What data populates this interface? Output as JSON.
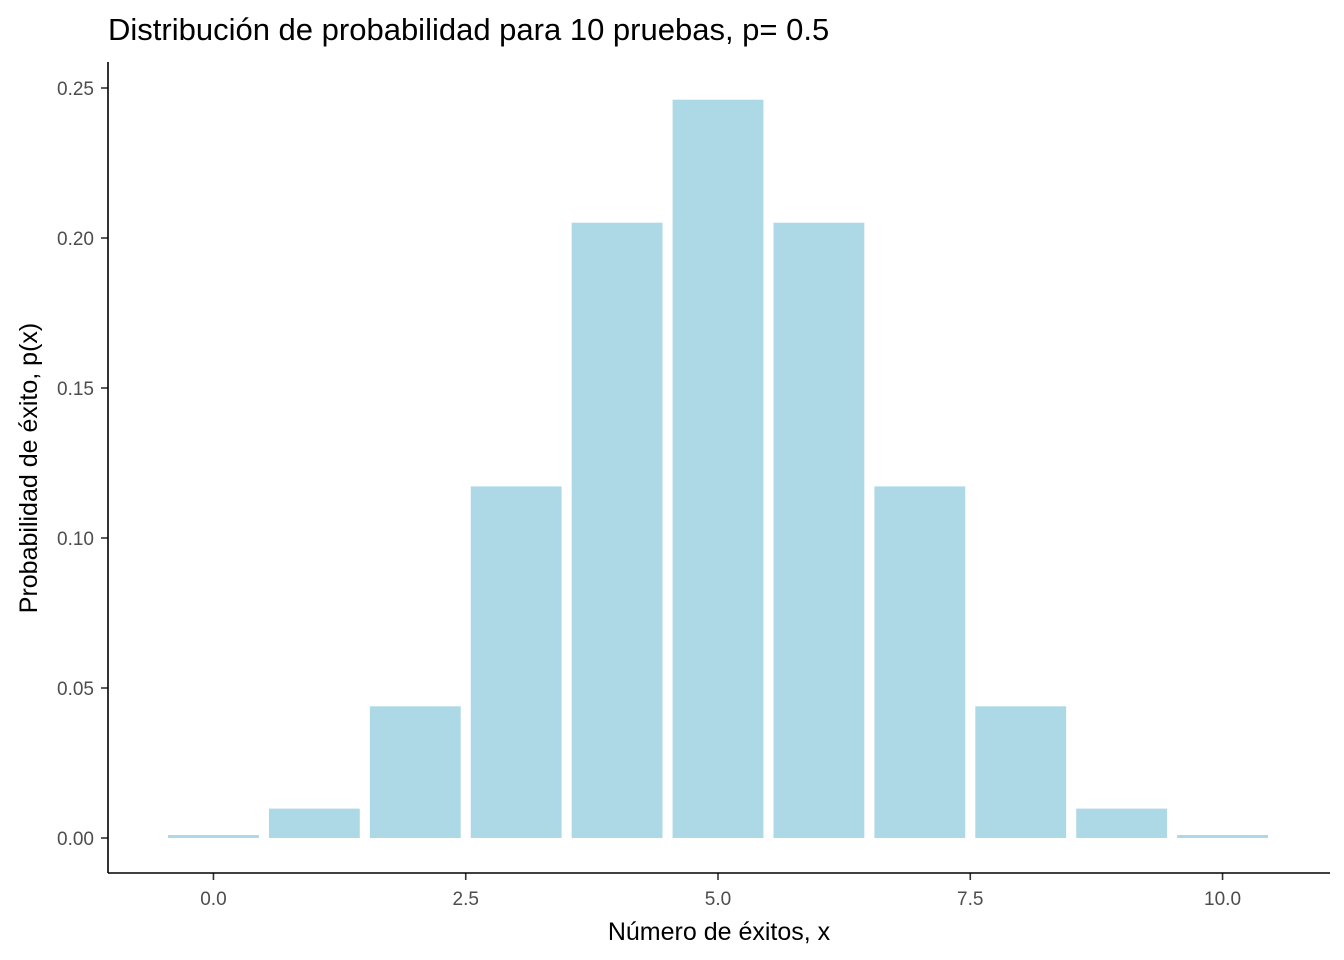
{
  "colors": {
    "bar_fill": "#add8e6",
    "background": "#ffffff",
    "axis": "#000000",
    "tick_label": "#4d4d4d"
  },
  "chart_data": {
    "type": "bar",
    "title": "Distribución de probabilidad para 10 pruebas, p= 0.5",
    "xlabel": "Número de éxitos, x",
    "ylabel": "Probabilidad de éxito, p(x)",
    "x": [
      0,
      1,
      2,
      3,
      4,
      5,
      6,
      7,
      8,
      9,
      10
    ],
    "values": [
      0.001,
      0.0098,
      0.0439,
      0.1172,
      0.2051,
      0.2461,
      0.2051,
      0.1172,
      0.0439,
      0.0098,
      0.001
    ],
    "xlim": [
      -0.5,
      10.5
    ],
    "ylim": [
      0,
      0.25
    ],
    "x_ticks": [
      0,
      2.5,
      5,
      7.5,
      10
    ],
    "x_tick_labels": [
      "0.0",
      "2.5",
      "5.0",
      "7.5",
      "10.0"
    ],
    "y_ticks": [
      0,
      0.05,
      0.1,
      0.15,
      0.2,
      0.25
    ],
    "y_tick_labels": [
      "0.00",
      "0.05",
      "0.10",
      "0.15",
      "0.20",
      "0.25"
    ],
    "grid": false,
    "legend": "none"
  }
}
